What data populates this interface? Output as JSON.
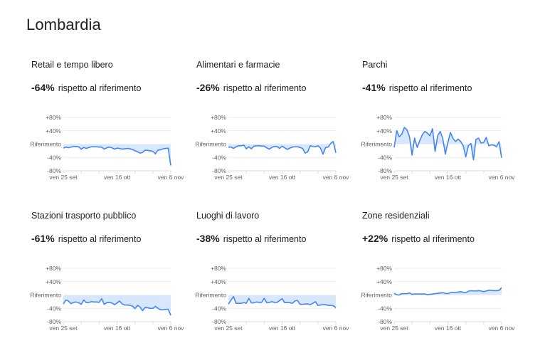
{
  "page": {
    "title": "Lombardia"
  },
  "common": {
    "stat_suffix": "rispetto al riferimento",
    "y_ticks": [
      {
        "label": "+80%",
        "value": 80
      },
      {
        "label": "+40%",
        "value": 40
      },
      {
        "label": "Riferimento",
        "value": 0
      },
      {
        "label": "-40%",
        "value": -40
      },
      {
        "label": "-80%",
        "value": -80
      }
    ],
    "x_labels": [
      {
        "label": "ven 25 set",
        "index": 0
      },
      {
        "label": "ven 16 ott",
        "index": 21
      },
      {
        "label": "ven 6 nov",
        "index": 42
      }
    ],
    "colors": {
      "line": "#4285f4",
      "fill": "#d2e3fc",
      "grid": "#e8eaed",
      "axis_text": "#5f6368"
    }
  },
  "panels": [
    {
      "title": "Retail e tempo libero",
      "value": "-64%"
    },
    {
      "title": "Alimentari e farmacie",
      "value": "-26%"
    },
    {
      "title": "Parchi",
      "value": "-41%"
    },
    {
      "title": "Stazioni trasporto pubblico",
      "value": "-61%"
    },
    {
      "title": "Luoghi di lavoro",
      "value": "-38%"
    },
    {
      "title": "Zone residenziali",
      "value": "+22%"
    }
  ],
  "chart_data": [
    {
      "type": "area",
      "title": "Retail e tempo libero",
      "xlabel": "",
      "ylabel": "",
      "ylim": [
        -80,
        80
      ],
      "x_tick_labels": [
        "ven 25 set",
        "ven 16 ott",
        "ven 6 nov"
      ],
      "y_tick_labels": [
        "+80%",
        "+40%",
        "Riferimento",
        "-40%",
        "-80%"
      ],
      "grid": true,
      "values": [
        -12,
        -9,
        -11,
        -9,
        -7,
        -7,
        -8,
        -15,
        -10,
        -13,
        -10,
        -8,
        -8,
        -8,
        -9,
        -9,
        -15,
        -11,
        -9,
        -11,
        -15,
        -12,
        -13,
        -15,
        -14,
        -13,
        -14,
        -16,
        -20,
        -23,
        -27,
        -25,
        -18,
        -19,
        -20,
        -22,
        -29,
        -18,
        -17,
        -14,
        -13,
        -12,
        -64
      ]
    },
    {
      "type": "area",
      "title": "Alimentari e farmacie",
      "xlabel": "",
      "ylabel": "",
      "ylim": [
        -80,
        80
      ],
      "x_tick_labels": [
        "ven 25 set",
        "ven 16 ott",
        "ven 6 nov"
      ],
      "y_tick_labels": [
        "+80%",
        "+40%",
        "Riferimento",
        "-40%",
        "-80%"
      ],
      "grid": true,
      "values": [
        -9,
        -9,
        -13,
        -8,
        -5,
        -5,
        -3,
        -14,
        -8,
        -14,
        -6,
        -5,
        -5,
        -6,
        -6,
        -11,
        -15,
        -10,
        -7,
        -7,
        -13,
        -6,
        -11,
        -16,
        -12,
        -9,
        -8,
        -8,
        -10,
        -13,
        -27,
        -23,
        -5,
        -7,
        -8,
        -5,
        -12,
        -30,
        -10,
        -9,
        2,
        8,
        -26
      ]
    },
    {
      "type": "area",
      "title": "Parchi",
      "xlabel": "",
      "ylabel": "",
      "ylim": [
        -80,
        80
      ],
      "x_tick_labels": [
        "ven 25 set",
        "ven 16 ott",
        "ven 6 nov"
      ],
      "y_tick_labels": [
        "+80%",
        "+40%",
        "Riferimento",
        "-40%",
        "-80%"
      ],
      "grid": true,
      "values": [
        -10,
        40,
        22,
        30,
        50,
        43,
        22,
        -33,
        18,
        -10,
        10,
        28,
        38,
        33,
        25,
        46,
        -22,
        25,
        38,
        17,
        -30,
        5,
        35,
        17,
        8,
        15,
        8,
        -5,
        -38,
        -5,
        2,
        -47,
        14,
        18,
        3,
        5,
        20,
        -5,
        -2,
        -3,
        -8,
        7,
        -41
      ]
    },
    {
      "type": "area",
      "title": "Stazioni trasporto pubblico",
      "xlabel": "",
      "ylabel": "",
      "ylim": [
        -80,
        80
      ],
      "x_tick_labels": [
        "ven 25 set",
        "ven 16 ott",
        "ven 6 nov"
      ],
      "y_tick_labels": [
        "+80%",
        "+40%",
        "Riferimento",
        "-40%",
        "-80%"
      ],
      "grid": true,
      "values": [
        -27,
        -15,
        -18,
        -26,
        -22,
        -21,
        -23,
        -28,
        -15,
        -23,
        -22,
        -20,
        -21,
        -21,
        -22,
        -11,
        -28,
        -23,
        -22,
        -24,
        -29,
        -24,
        -18,
        -27,
        -30,
        -30,
        -31,
        -33,
        -41,
        -31,
        -36,
        -47,
        -37,
        -38,
        -40,
        -40,
        -34,
        -40,
        -44,
        -44,
        -43,
        -43,
        -61
      ]
    },
    {
      "type": "area",
      "title": "Luoghi di lavoro",
      "xlabel": "",
      "ylabel": "",
      "ylim": [
        -80,
        80
      ],
      "x_tick_labels": [
        "ven 25 set",
        "ven 16 ott",
        "ven 6 nov"
      ],
      "y_tick_labels": [
        "+80%",
        "+40%",
        "Riferimento",
        "-40%",
        "-80%"
      ],
      "grid": true,
      "values": [
        -27,
        -16,
        -5,
        -25,
        -25,
        -25,
        -23,
        -25,
        -10,
        -24,
        -23,
        -21,
        -22,
        -22,
        -10,
        -23,
        -22,
        -20,
        -22,
        -22,
        -17,
        -11,
        -23,
        -22,
        -23,
        -25,
        -18,
        -16,
        -28,
        -28,
        -27,
        -27,
        -29,
        -25,
        -20,
        -31,
        -30,
        -29,
        -29,
        -31,
        -31,
        -32,
        -38
      ]
    },
    {
      "type": "area",
      "title": "Zone residenziali",
      "xlabel": "",
      "ylabel": "",
      "ylim": [
        -80,
        80
      ],
      "x_tick_labels": [
        "ven 25 set",
        "ven 16 ott",
        "ven 6 nov"
      ],
      "y_tick_labels": [
        "+80%",
        "+40%",
        "Riferimento",
        "-40%",
        "-80%"
      ],
      "grid": true,
      "values": [
        5,
        1,
        0,
        4,
        4,
        4,
        6,
        2,
        3,
        3,
        3,
        3,
        3,
        1,
        2,
        3,
        4,
        5,
        6,
        7,
        5,
        4,
        7,
        8,
        8,
        9,
        10,
        8,
        7,
        11,
        13,
        12,
        12,
        13,
        12,
        10,
        12,
        14,
        14,
        13,
        13,
        14,
        22
      ]
    }
  ]
}
